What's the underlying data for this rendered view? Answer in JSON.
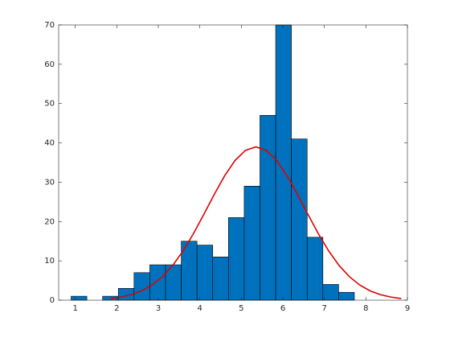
{
  "chart_data": {
    "type": "histogram",
    "bins": [
      0.9,
      1.279,
      1.658,
      2.037,
      2.416,
      2.795,
      3.174,
      3.553,
      3.932,
      4.311,
      4.69,
      5.069,
      5.448,
      5.827,
      6.206,
      6.585,
      6.964,
      7.343,
      7.722
    ],
    "values": [
      1,
      0,
      1,
      3,
      7,
      9,
      9,
      15,
      14,
      11,
      21,
      29,
      47,
      70,
      41,
      16,
      4,
      2
    ],
    "color": "#0072bd",
    "edgecolor": "#000000",
    "fit": {
      "type": "line",
      "color": "#e00000",
      "x": [
        1.85,
        2.1,
        2.35,
        2.6,
        2.85,
        3.1,
        3.35,
        3.6,
        3.85,
        4.1,
        4.35,
        4.6,
        4.85,
        5.1,
        5.35,
        5.6,
        5.85,
        6.1,
        6.35,
        6.6,
        6.85,
        7.1,
        7.35,
        7.6,
        7.85,
        8.1,
        8.35,
        8.6,
        8.85
      ],
      "values": [
        0.42,
        0.79,
        1.4,
        2.38,
        3.87,
        6.0,
        8.89,
        12.57,
        16.98,
        21.89,
        26.95,
        31.68,
        35.56,
        38.11,
        39,
        38.11,
        35.56,
        31.68,
        26.95,
        21.89,
        16.98,
        12.57,
        8.89,
        6.0,
        3.87,
        2.38,
        1.4,
        0.79,
        0.42
      ]
    },
    "xlim": [
      0.6,
      9
    ],
    "xticks": [
      1,
      2,
      3,
      4,
      5,
      6,
      7,
      8,
      9
    ],
    "ylim": [
      0,
      70
    ],
    "yticks": [
      0,
      10,
      20,
      30,
      40,
      50,
      60,
      70
    ]
  }
}
